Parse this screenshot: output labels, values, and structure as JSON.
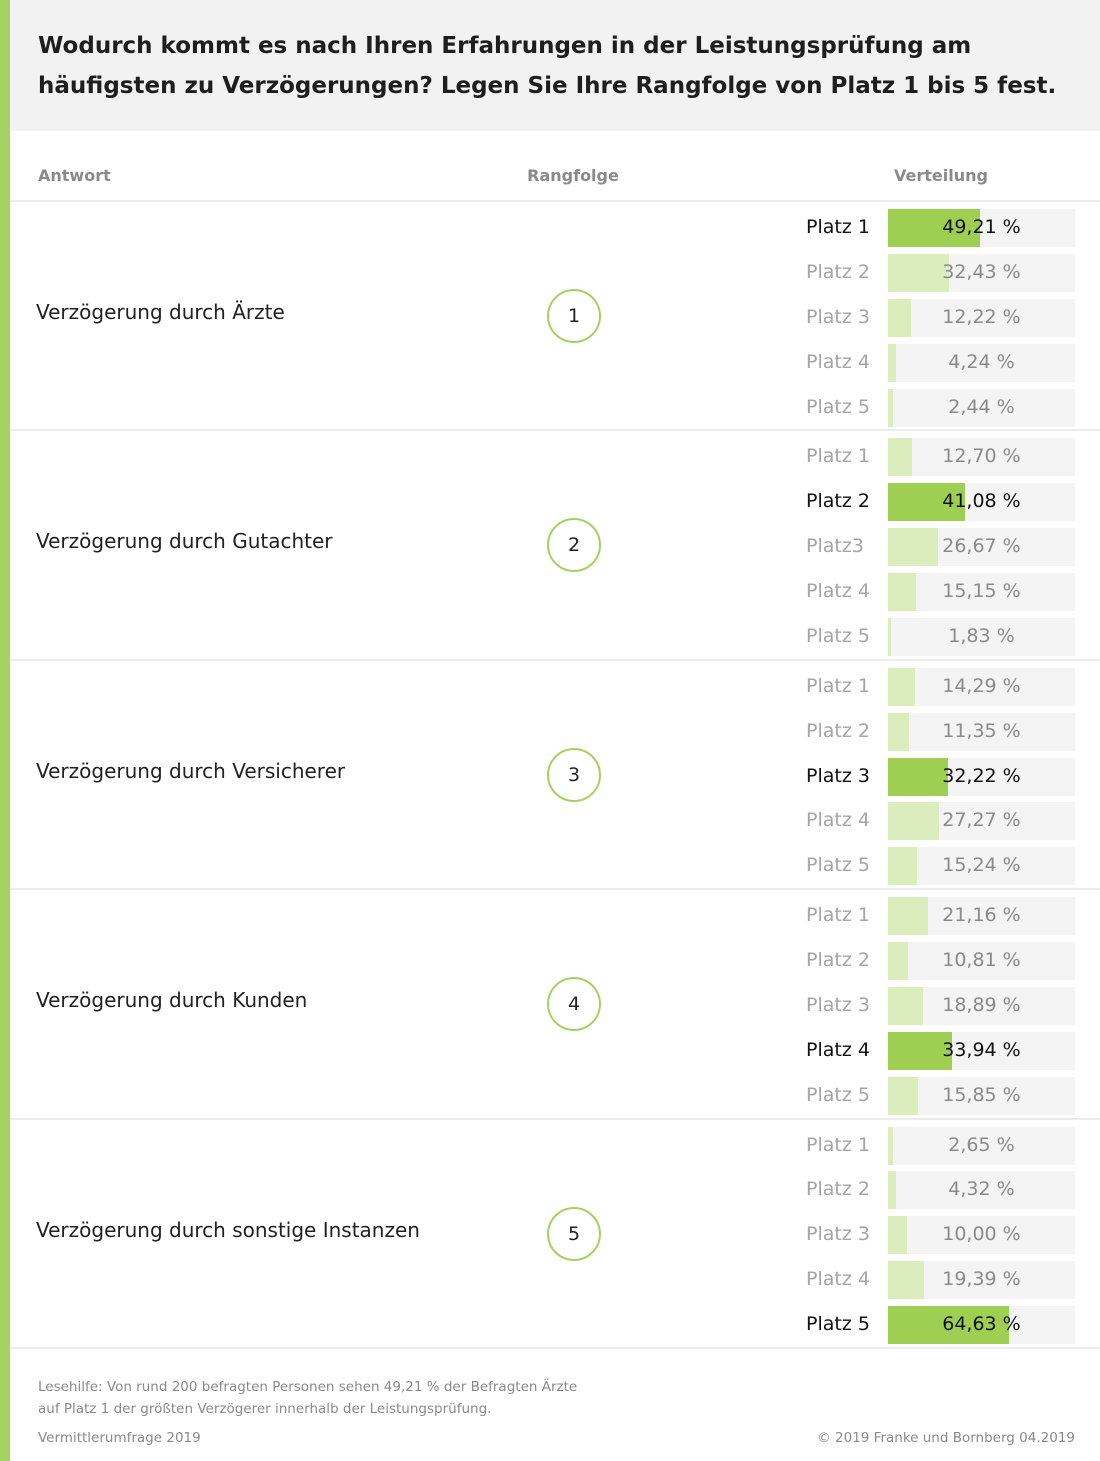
{
  "title": "Wodurch kommt es nach Ihren Erfahrungen in der Leistungsprüfung am häufigsten zu Verzögerungen? Legen Sie Ihre Rangfolge von Platz 1 bis 5 fest.",
  "headers": {
    "answer": "Antwort",
    "rank": "Rangfolge",
    "distribution": "Verteilung"
  },
  "footer": {
    "note": "Lesehilfe:  Von rund 200 befragten Personen sehen 49,21 % der Befragten Ärzte auf Platz 1 der größten Verzögerer innerhalb der Leistungsprüfung.",
    "source": "Vermittlerumfrage 2019",
    "copyright": "© 2019 Franke und Bornberg 04.2019"
  },
  "colors": {
    "accent": "#a5d160",
    "highlight_bar": "#9fcf52",
    "light_bar": "#dbedbd",
    "track": "#f4f4f4"
  },
  "chart_data": {
    "type": "bar",
    "groups": [
      {
        "answer": "Verzögerung durch Ärzte",
        "rank": "1",
        "rows": [
          {
            "label": "Platz 1",
            "value": 49.21,
            "text": "49,21 %",
            "highlight": true
          },
          {
            "label": "Platz 2",
            "value": 32.43,
            "text": "32,43 %",
            "highlight": false
          },
          {
            "label": "Platz 3",
            "value": 12.22,
            "text": "12,22 %",
            "highlight": false
          },
          {
            "label": "Platz 4",
            "value": 4.24,
            "text": "4,24 %",
            "highlight": false
          },
          {
            "label": "Platz 5",
            "value": 2.44,
            "text": "2,44 %",
            "highlight": false
          }
        ]
      },
      {
        "answer": "Verzögerung durch Gutachter",
        "rank": "2",
        "rows": [
          {
            "label": "Platz 1",
            "value": 12.7,
            "text": "12,70 %",
            "highlight": false
          },
          {
            "label": "Platz 2",
            "value": 41.08,
            "text": "41,08 %",
            "highlight": true
          },
          {
            "label": "Platz3",
            "value": 26.67,
            "text": "26,67 %",
            "highlight": false
          },
          {
            "label": "Platz 4",
            "value": 15.15,
            "text": "15,15 %",
            "highlight": false
          },
          {
            "label": "Platz 5",
            "value": 1.83,
            "text": "1,83 %",
            "highlight": false
          }
        ]
      },
      {
        "answer": "Verzögerung durch Versicherer",
        "rank": "3",
        "rows": [
          {
            "label": "Platz 1",
            "value": 14.29,
            "text": "14,29 %",
            "highlight": false
          },
          {
            "label": "Platz 2",
            "value": 11.35,
            "text": "11,35 %",
            "highlight": false
          },
          {
            "label": "Platz 3",
            "value": 32.22,
            "text": "32,22 %",
            "highlight": true
          },
          {
            "label": "Platz 4",
            "value": 27.27,
            "text": "27,27 %",
            "highlight": false
          },
          {
            "label": "Platz 5",
            "value": 15.24,
            "text": "15,24 %",
            "highlight": false
          }
        ]
      },
      {
        "answer": "Verzögerung durch Kunden",
        "rank": "4",
        "rows": [
          {
            "label": "Platz 1",
            "value": 21.16,
            "text": "21,16 %",
            "highlight": false
          },
          {
            "label": "Platz 2",
            "value": 10.81,
            "text": "10,81 %",
            "highlight": false
          },
          {
            "label": "Platz 3",
            "value": 18.89,
            "text": "18,89 %",
            "highlight": false
          },
          {
            "label": "Platz 4",
            "value": 33.94,
            "text": "33,94 %",
            "highlight": true
          },
          {
            "label": "Platz 5",
            "value": 15.85,
            "text": "15,85 %",
            "highlight": false
          }
        ]
      },
      {
        "answer": "Verzögerung durch sonstige Instanzen",
        "rank": "5",
        "rows": [
          {
            "label": "Platz 1",
            "value": 2.65,
            "text": "2,65 %",
            "highlight": false
          },
          {
            "label": "Platz 2",
            "value": 4.32,
            "text": "4,32 %",
            "highlight": false
          },
          {
            "label": "Platz 3",
            "value": 10.0,
            "text": "10,00 %",
            "highlight": false
          },
          {
            "label": "Platz 4",
            "value": 19.39,
            "text": "19,39 %",
            "highlight": false
          },
          {
            "label": "Platz 5",
            "value": 64.63,
            "text": "64,63 %",
            "highlight": true
          }
        ]
      }
    ],
    "value_range": [
      0,
      100
    ]
  }
}
